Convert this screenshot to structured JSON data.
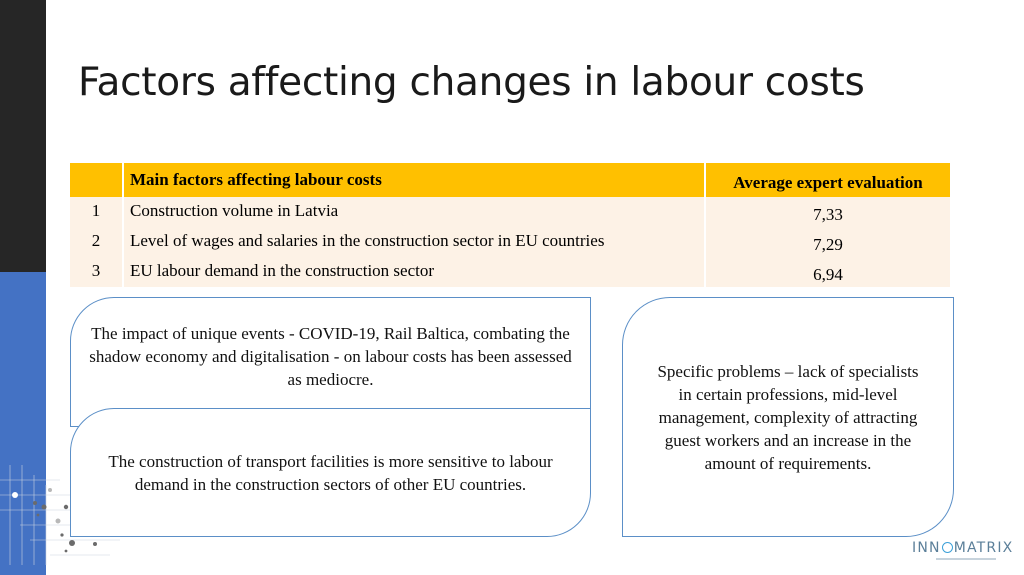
{
  "slide": {
    "title": "Factors affecting changes in labour costs"
  },
  "table": {
    "header_factor": "Main factors affecting labour costs",
    "header_eval": "Average expert evaluation",
    "rows": [
      {
        "num": "1",
        "factor": "Construction volume in Latvia",
        "eval": "7,33"
      },
      {
        "num": "2",
        "factor": "Level of wages and salaries in the construction sector in EU countries",
        "eval": "7,29"
      },
      {
        "num": "3",
        "factor": "EU labour demand in the construction sector",
        "eval": "6,94"
      }
    ]
  },
  "boxes": {
    "unique_events": "The impact of unique events - COVID-19, Rail Baltica, combating the shadow economy and digitalisation - on labour costs has been assessed as mediocre.",
    "transport": "The construction of transport facilities is more sensitive to labour demand in the construction sectors of other EU countries.",
    "problems": "Specific problems – lack of specialists in certain professions, mid-level management, complexity of attracting guest workers and an increase in the amount of requirements."
  },
  "logo": {
    "part1": "INN",
    "part2": "MATRIX"
  },
  "colors": {
    "sidebar_dark": "#262626",
    "sidebar_blue": "#4472c4",
    "table_header": "#ffc000",
    "table_row": "#fdf2e6",
    "box_border": "#5b8fc7"
  }
}
